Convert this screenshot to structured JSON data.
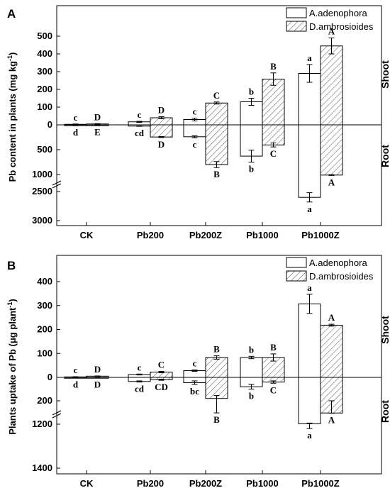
{
  "chart_data": [
    {
      "type": "bar",
      "panel_label": "A",
      "ylabel_main": "Pb content in plants (mg kg",
      "ylabel_sup": "-1",
      "ylabel_end": ")",
      "categories": [
        "CK",
        "Pb200",
        "Pb200Z",
        "Pb1000",
        "Pb1000Z"
      ],
      "upper_label": "Shoot",
      "lower_label": "Root",
      "upper_ticks": [
        "500",
        "400",
        "300",
        "200",
        "100",
        "0"
      ],
      "lower_ticks": [
        "500",
        "1000",
        "2500",
        "3000"
      ],
      "axis_break": "between 1000 and 2500 on the root axis",
      "series": [
        {
          "name": "A.adenophora",
          "pattern": "white",
          "shoot": [
            3,
            17,
            30,
            130,
            290
          ],
          "shoot_err": [
            2,
            3,
            8,
            20,
            50
          ],
          "shoot_sig": [
            "c",
            "c",
            "c",
            "b",
            "a"
          ],
          "root": [
            10,
            25,
            240,
            630,
            2600
          ],
          "root_err": [
            3,
            5,
            20,
            120,
            80
          ],
          "root_sig": [
            "d",
            "cd",
            "c",
            "b",
            "a"
          ]
        },
        {
          "name": "D.ambrosioides",
          "pattern": "hatched",
          "shoot": [
            5,
            40,
            123,
            258,
            445
          ],
          "shoot_err": [
            2,
            6,
            6,
            35,
            45
          ],
          "shoot_sig": [
            "D",
            "D",
            "C",
            "B",
            "A"
          ],
          "root": [
            8,
            245,
            800,
            405,
            1050
          ],
          "root_err": [
            2,
            10,
            60,
            40,
            35
          ],
          "root_sig": [
            "E",
            "D",
            "B",
            "C",
            "A"
          ]
        }
      ]
    },
    {
      "type": "bar",
      "panel_label": "B",
      "ylabel_main": "Plants uptake of Pb (μg plant",
      "ylabel_sup": "-1",
      "ylabel_end": ")",
      "categories": [
        "CK",
        "Pb200",
        "Pb200Z",
        "Pb1000",
        "Pb1000Z"
      ],
      "upper_label": "Shoot",
      "lower_label": "Root",
      "upper_ticks": [
        "400",
        "300",
        "200",
        "100",
        "0"
      ],
      "lower_ticks": [
        "200",
        "1200",
        "1400"
      ],
      "axis_break": "between 200 and 1200 on the root axis",
      "series": [
        {
          "name": "A.adenophora",
          "pattern": "white",
          "shoot": [
            2,
            12,
            28,
            83,
            307
          ],
          "shoot_err": [
            1,
            2,
            3,
            5,
            40
          ],
          "shoot_sig": [
            "c",
            "c",
            "c",
            "b",
            "a"
          ],
          "root": [
            3,
            35,
            45,
            80,
            1160
          ],
          "root_err": [
            1,
            5,
            15,
            20,
            60
          ],
          "root_sig": [
            "d",
            "cd",
            "bc",
            "b",
            "a"
          ]
        },
        {
          "name": "D.ambrosioides",
          "pattern": "hatched",
          "shoot": [
            5,
            22,
            83,
            83,
            218
          ],
          "shoot_err": [
            1,
            3,
            7,
            15,
            4
          ],
          "shoot_sig": [
            "D",
            "C",
            "B",
            "B",
            "A"
          ],
          "root": [
            3,
            20,
            180,
            40,
            215
          ],
          "root_err": [
            1,
            5,
            25,
            10,
            15
          ],
          "root_sig": [
            "D",
            "CD",
            "B",
            "C",
            "A"
          ]
        }
      ]
    }
  ]
}
